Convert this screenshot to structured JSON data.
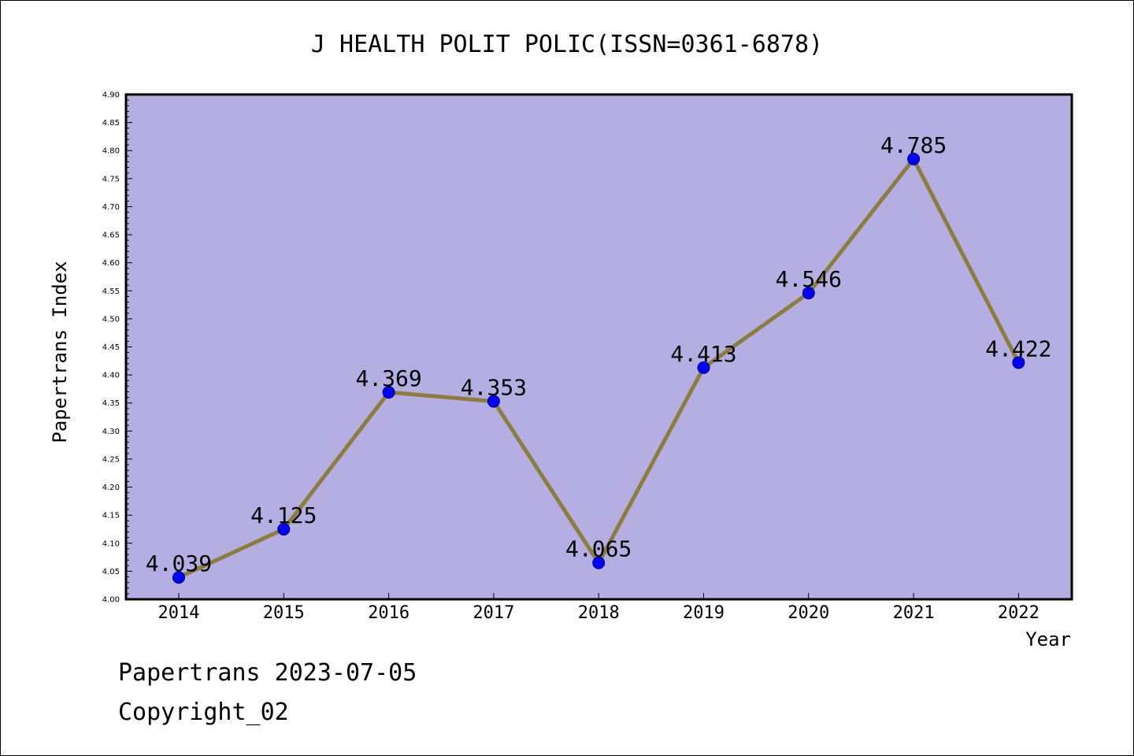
{
  "chart_data": {
    "type": "line",
    "title": "J HEALTH POLIT POLIC(ISSN=0361-6878)",
    "xlabel": "Year",
    "ylabel": "Papertrans Index",
    "categories": [
      "2014",
      "2015",
      "2016",
      "2017",
      "2018",
      "2019",
      "2020",
      "2021",
      "2022"
    ],
    "series": [
      {
        "values": [
          4.039,
          4.125,
          4.369,
          4.353,
          4.065,
          4.413,
          4.546,
          4.785,
          4.422
        ],
        "labels": [
          "4.039",
          "4.125",
          "4.369",
          "4.353",
          "4.065",
          "4.413",
          "4.546",
          "4.785",
          "4.422"
        ]
      }
    ],
    "ylim": [
      4.0,
      4.9
    ],
    "yticks": [
      "4.00",
      "4.05",
      "4.10",
      "4.15",
      "4.20",
      "4.25",
      "4.30",
      "4.35",
      "4.40",
      "4.45",
      "4.50",
      "4.55",
      "4.60",
      "4.65",
      "4.70",
      "4.75",
      "4.80",
      "4.85",
      "4.90"
    ],
    "grid": false,
    "colors": {
      "plot_background": "#b5aee2",
      "line": "#8b7d3c",
      "marker": "#0000ff"
    }
  },
  "footer": {
    "line1": "Papertrans 2023-07-05",
    "line2": "Copyright_02"
  }
}
